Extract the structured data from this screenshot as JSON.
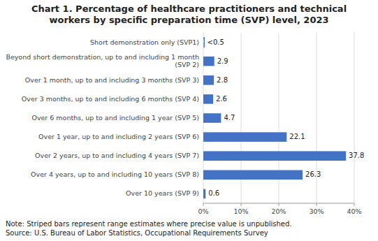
{
  "chart_data": {
    "type": "bar",
    "orientation": "horizontal",
    "title": "Chart 1. Percentage of healthcare practitioners and technical\nworkers by specific preparation time (SVP) level, 2023",
    "categories": [
      "Short demonstration only (SVP1)",
      "Beyond short demonstration, up to and including 1 month\n(SVP 2)",
      "Over 1 month, up to and including 3 months (SVP 3)",
      "Over 3 months, up to and including 6 months (SVP 4)",
      "Over 6 months, up to and including 1 year (SVP 5)",
      "Over 1 year, up to and including 2 years (SVP 6)",
      "Over 2 years, up to and including 4 years (SVP 7)",
      "Over 4 years, up to and including 10 years (SVP 8)",
      "Over 10 years (SVP 9)"
    ],
    "values": [
      0.3,
      2.9,
      2.8,
      2.6,
      4.7,
      22.1,
      37.8,
      26.3,
      0.6
    ],
    "value_labels": [
      "<0.5",
      "2.9",
      "2.8",
      "2.6",
      "4.7",
      "22.1",
      "37.8",
      "26.3",
      "0.6"
    ],
    "data_labels": true,
    "color": "#4472C4",
    "xlim": [
      0,
      40
    ],
    "xticks": [
      {
        "value": 0,
        "label": "0%"
      },
      {
        "value": 10,
        "label": "10%"
      },
      {
        "value": 20,
        "label": "20%"
      },
      {
        "value": 30,
        "label": "30%"
      },
      {
        "value": 40,
        "label": "40%"
      }
    ],
    "grid": true,
    "annotations": [
      "Note: Striped bars represent range estimates where precise value is unpublished.",
      "Source: U.S. Bureau of Labor Statistics, Occupational Requirements Survey"
    ]
  }
}
